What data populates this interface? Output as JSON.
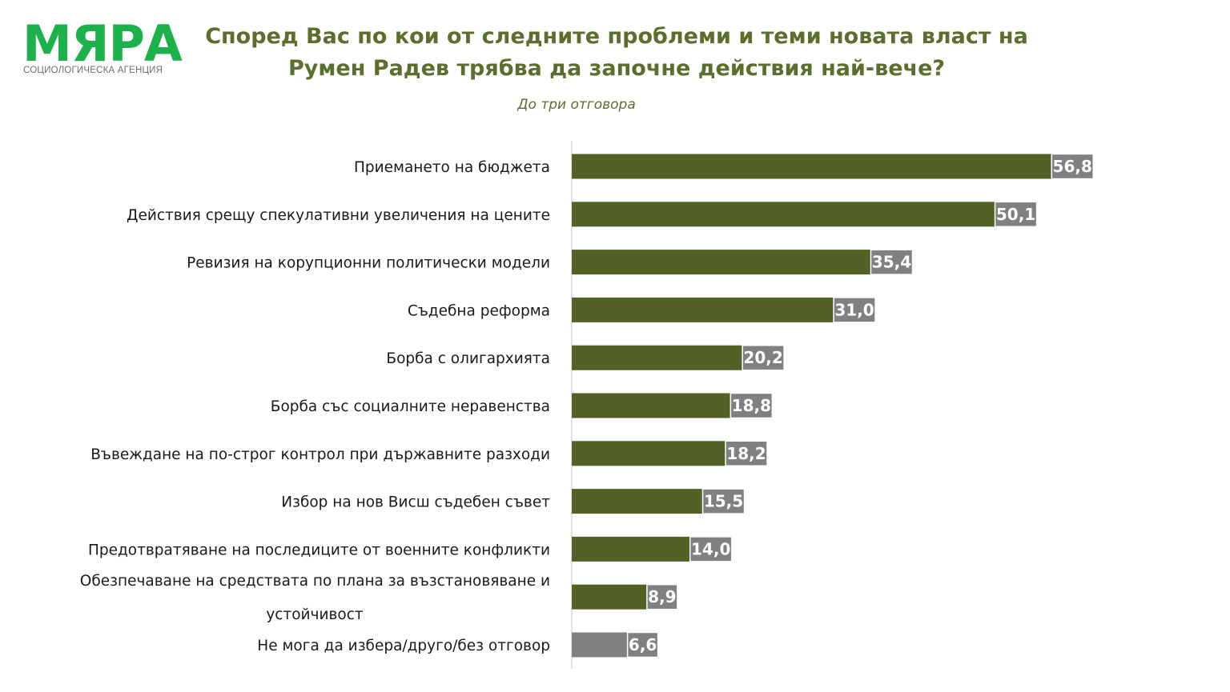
{
  "logo": {
    "name": "МЯРА",
    "tagline": "СОЦИОЛОГИЧЕСКА АГЕНЦИЯ"
  },
  "colors": {
    "bar": "#526227",
    "bar_other": "#808080",
    "label_box": "#808080",
    "title": "#5a6f2c",
    "logo": "#1db14b"
  },
  "chart_data": {
    "type": "bar",
    "orientation": "horizontal",
    "title_lines": [
      "Според Вас по кои от следните проблеми и теми новата власт на",
      "Румен Радев трябва да започне действия най-вече?"
    ],
    "subtitle": "До три отговора",
    "categories": [
      [
        "Приемането на бюджета"
      ],
      [
        "Действия срещу спекулативни увеличения на цените"
      ],
      [
        "Ревизия на корупционни политически модели"
      ],
      [
        "Съдебна реформа"
      ],
      [
        "Борба с олигархията"
      ],
      [
        "Борба със социалните неравенства"
      ],
      [
        "Въвеждане на по-строг контрол при държавните разходи"
      ],
      [
        "Избор на нов Висш съдебен съвет"
      ],
      [
        "Предотвратяване на последиците от военните конфликти"
      ],
      [
        "Обезпечаване на средствата по плана за възстановяване и",
        "устойчивост"
      ],
      [
        "Не мога да избера/друго/без отговор"
      ]
    ],
    "values": [
      56.8,
      50.1,
      35.4,
      31.0,
      20.2,
      18.8,
      18.2,
      15.5,
      14.0,
      8.9,
      6.6
    ],
    "value_labels": [
      "56,8",
      "50,1",
      "35,4",
      "31,0",
      "20,2",
      "18,8",
      "18,2",
      "15,5",
      "14,0",
      "8,9",
      "6,6"
    ],
    "highlight_last_gray": true,
    "xlim": [
      0,
      80
    ],
    "grid": false,
    "legend": "none"
  }
}
